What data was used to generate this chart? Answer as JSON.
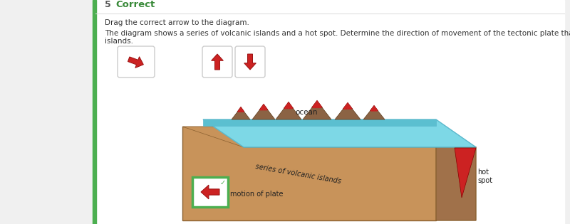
{
  "title_number": "5",
  "title_text": "Correct",
  "title_color": "#3a8a3a",
  "bg_color": "#f0f0f0",
  "panel_bg": "#ffffff",
  "green_bar": "#4caf50",
  "ocean_color": "#7dd8e6",
  "ocean_front_color": "#5bbfd0",
  "ocean_top_edge": "#5ab8cc",
  "plate_color": "#c8935a",
  "plate_dark_color": "#a0714a",
  "plate_edge": "#8a6030",
  "label_ocean": "ocean",
  "label_series": "series of volcanic islands",
  "label_motion": "motion of plate",
  "label_hotspot": "hot\nspot",
  "arrow_box_border": "#4caf50",
  "red_arrow_color": "#cc2222",
  "red_arrow_dark": "#991111",
  "volcano_body": "#8B6344",
  "volcano_edge": "#5a3a1a",
  "volcano_lava": "#cc2222",
  "text_color": "#333333",
  "instruction1": "Drag the correct arrow to the diagram.",
  "instruction2": "The diagram shows a series of volcanic islands and a hot spot. Determine the direction of movement of the tectonic plate that helped form the\nislands."
}
